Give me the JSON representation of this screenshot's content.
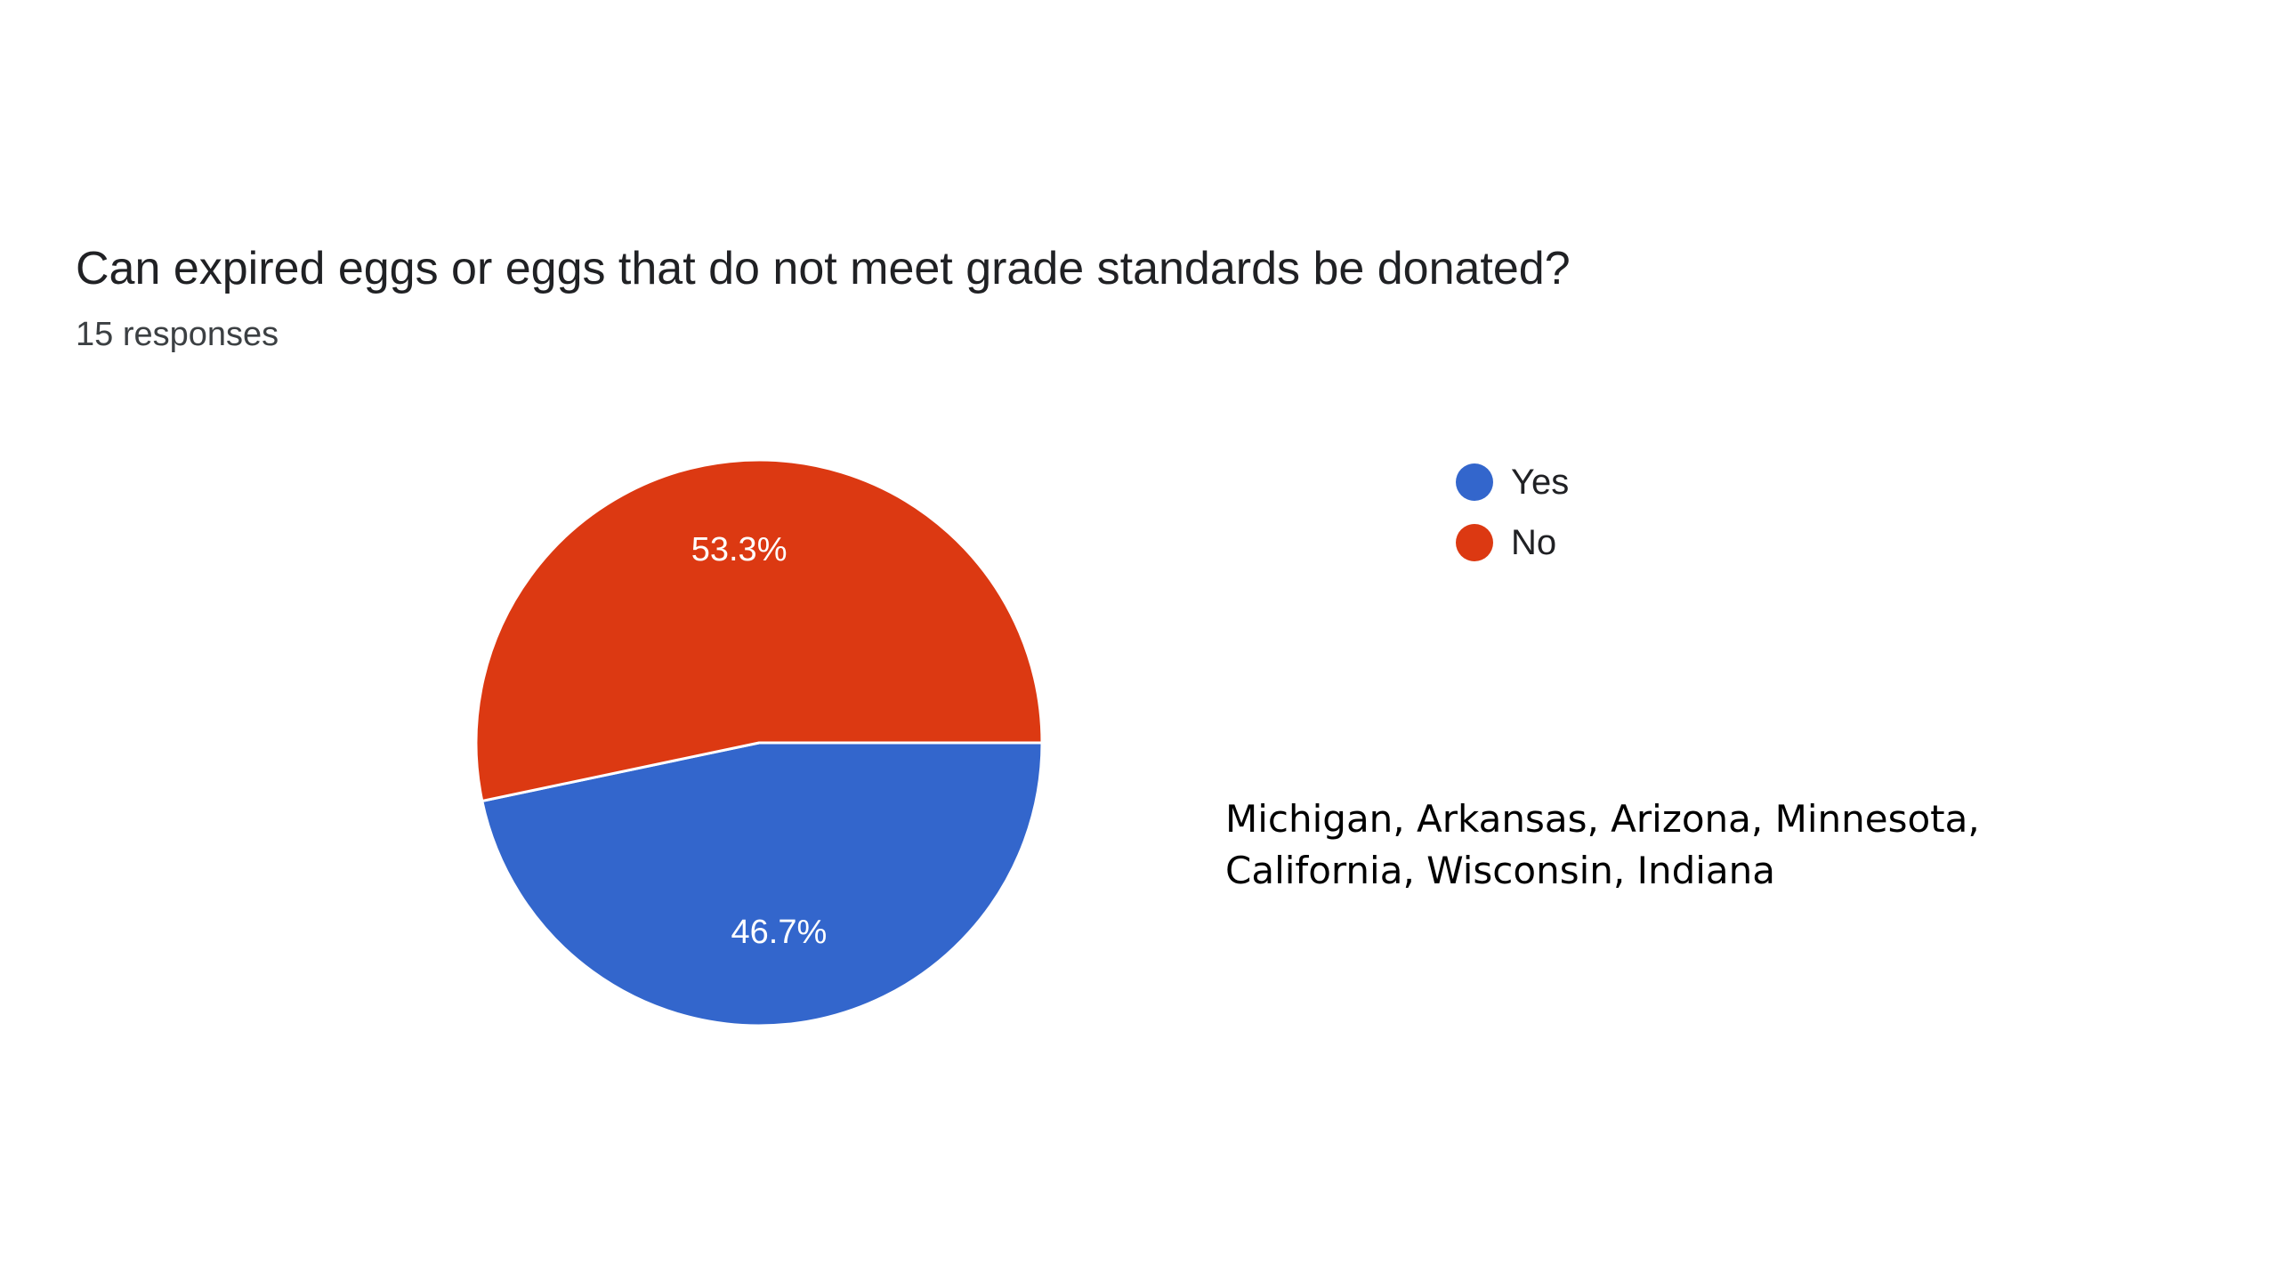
{
  "question": {
    "title": "Can expired eggs or eggs that do not meet grade standards be donated?",
    "responses": "15 responses"
  },
  "chart_data": {
    "type": "pie",
    "categories": [
      "Yes",
      "No"
    ],
    "values": [
      46.7,
      53.3
    ],
    "value_labels": [
      "46.7%",
      "53.3%"
    ],
    "colors": [
      "#3366cc",
      "#dc3912"
    ],
    "legend_position": "right"
  },
  "legend": {
    "items": [
      {
        "label": "Yes",
        "color": "#3366cc"
      },
      {
        "label": "No",
        "color": "#dc3912"
      }
    ]
  },
  "note": {
    "states": "Michigan, Arkansas, Arizona, Minnesota, California, Wisconsin, Indiana"
  }
}
